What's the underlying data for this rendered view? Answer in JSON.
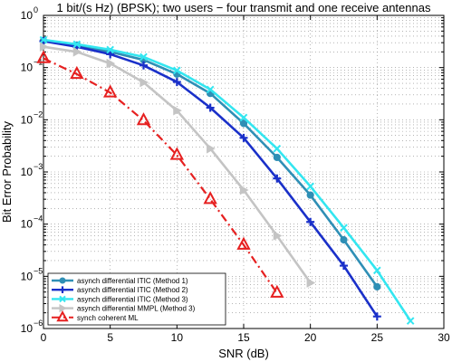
{
  "chart_data": {
    "type": "line",
    "title": "1 bit/(s Hz) (BPSK); two users − four transmit and one receive antennas",
    "xlabel": "SNR (dB)",
    "ylabel": "Bit Error Probability",
    "xlim": [
      0,
      30
    ],
    "ylim": [
      1e-06,
      1
    ],
    "yscale": "log",
    "grid": true,
    "x_ticks": [
      "0",
      "5",
      "10",
      "15",
      "20",
      "25",
      "30"
    ],
    "y_ticks": [
      {
        "base": "10",
        "exp": "0"
      },
      {
        "base": "10",
        "exp": "−1"
      },
      {
        "base": "10",
        "exp": "−2"
      },
      {
        "base": "10",
        "exp": "−3"
      },
      {
        "base": "10",
        "exp": "−4"
      },
      {
        "base": "10",
        "exp": "−5"
      },
      {
        "base": "10",
        "exp": "−6"
      }
    ],
    "legend_position": "bottom-left",
    "series": [
      {
        "name": "asynch differential ITIC (Method 1)",
        "color": "#2f8fb5",
        "line": "solid",
        "marker": "circle",
        "x": [
          0,
          2.5,
          5,
          7.5,
          10,
          12.5,
          15,
          17.5,
          20,
          22.5,
          25
        ],
        "y": [
          0.33,
          0.27,
          0.2,
          0.14,
          0.075,
          0.032,
          0.0085,
          0.0019,
          0.00036,
          5e-05,
          6.3e-06
        ]
      },
      {
        "name": "asynch differential ITIC (Method 2)",
        "color": "#1a30c9",
        "line": "solid",
        "marker": "plus",
        "x": [
          0,
          2.5,
          5,
          7.5,
          10,
          12.5,
          15,
          17.5,
          20,
          22.5,
          25
        ],
        "y": [
          0.32,
          0.25,
          0.18,
          0.11,
          0.053,
          0.017,
          0.0045,
          0.00075,
          0.00011,
          1.6e-05,
          1.7e-06
        ]
      },
      {
        "name": "asynch differential ITIC (Method 3)",
        "color": "#33e6f0",
        "line": "solid",
        "marker": "x",
        "x": [
          0,
          2.5,
          5,
          7.5,
          10,
          12.5,
          15,
          17.5,
          20,
          22.5,
          25,
          27.5
        ],
        "y": [
          0.34,
          0.28,
          0.22,
          0.16,
          0.088,
          0.038,
          0.011,
          0.0028,
          0.00053,
          8.5e-05,
          1.3e-05,
          1.4e-06
        ]
      },
      {
        "name": "asynch differential MMPL (Method 3)",
        "color": "#c4c4c4",
        "line": "solid",
        "marker": "triangle-right",
        "x": [
          0,
          2.5,
          5,
          7.5,
          10,
          12.5,
          15,
          17.5,
          20
        ],
        "y": [
          0.25,
          0.2,
          0.12,
          0.052,
          0.015,
          0.0028,
          0.00045,
          6e-05,
          7.5e-06
        ]
      },
      {
        "name": "synch coherent ML",
        "color": "#e62020",
        "line": "dash-dot",
        "marker": "triangle-up",
        "x": [
          0,
          2.5,
          5,
          7.5,
          10,
          12.5,
          15,
          17.5
        ],
        "y": [
          0.15,
          0.075,
          0.033,
          0.0097,
          0.0021,
          0.0003,
          4e-05,
          4.8e-06
        ]
      }
    ]
  }
}
